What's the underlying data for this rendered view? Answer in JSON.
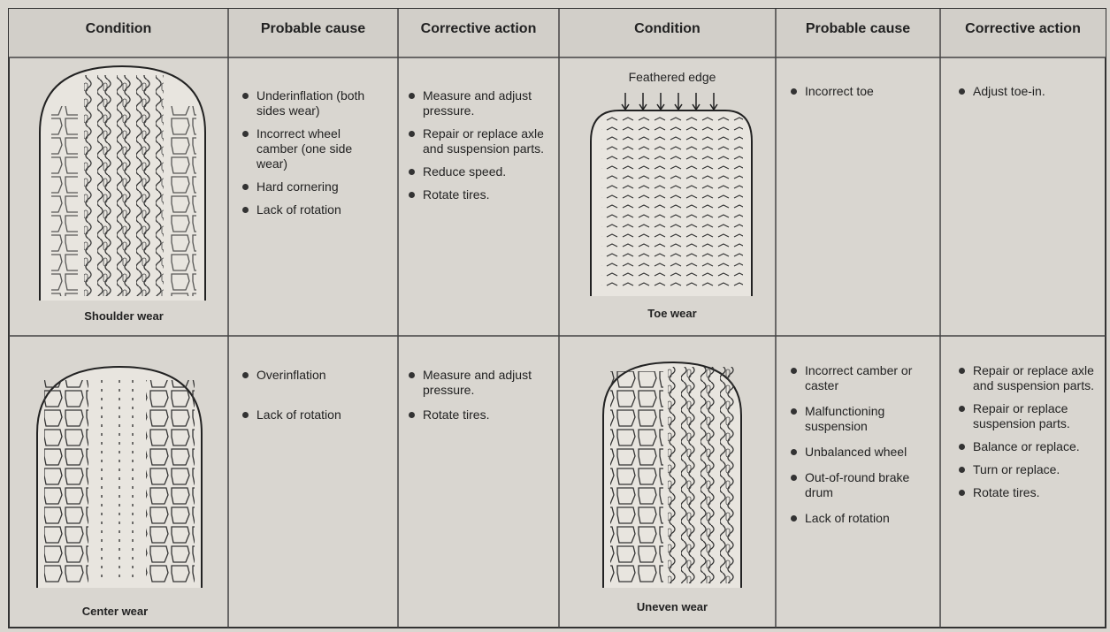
{
  "table": {
    "headers": [
      "Condition",
      "Probable cause",
      "Corrective action",
      "Condition",
      "Probable cause",
      "Corrective action"
    ],
    "rows": [
      {
        "left": {
          "caption": "Shoulder wear",
          "causes": [
            "Underinflation (both sides wear)",
            "Incorrect wheel camber (one side wear)",
            "Hard cornering",
            "Lack of rotation"
          ],
          "actions": [
            "Measure and adjust pressure.",
            "Repair or replace axle and suspension parts.",
            "Reduce speed.",
            "Rotate tires."
          ]
        },
        "right": {
          "label": "Feathered edge",
          "caption": "Toe wear",
          "causes": [
            "Incorrect toe"
          ],
          "actions": [
            "Adjust toe-in."
          ]
        }
      },
      {
        "left": {
          "caption": "Center wear",
          "causes": [
            "Overinflation",
            "Lack of rotation"
          ],
          "actions": [
            "Measure and adjust pressure.",
            "Rotate tires."
          ]
        },
        "right": {
          "caption": "Uneven wear",
          "causes": [
            "Incorrect camber or caster",
            "Malfunctioning suspension",
            "Unbalanced wheel",
            "Out-of-round brake drum",
            "Lack of rotation"
          ],
          "actions": [
            "Repair or replace axle and suspension parts.",
            "Repair or replace suspension parts.",
            "Balance or replace.",
            "Turn or replace.",
            "Rotate tires."
          ]
        }
      }
    ]
  }
}
